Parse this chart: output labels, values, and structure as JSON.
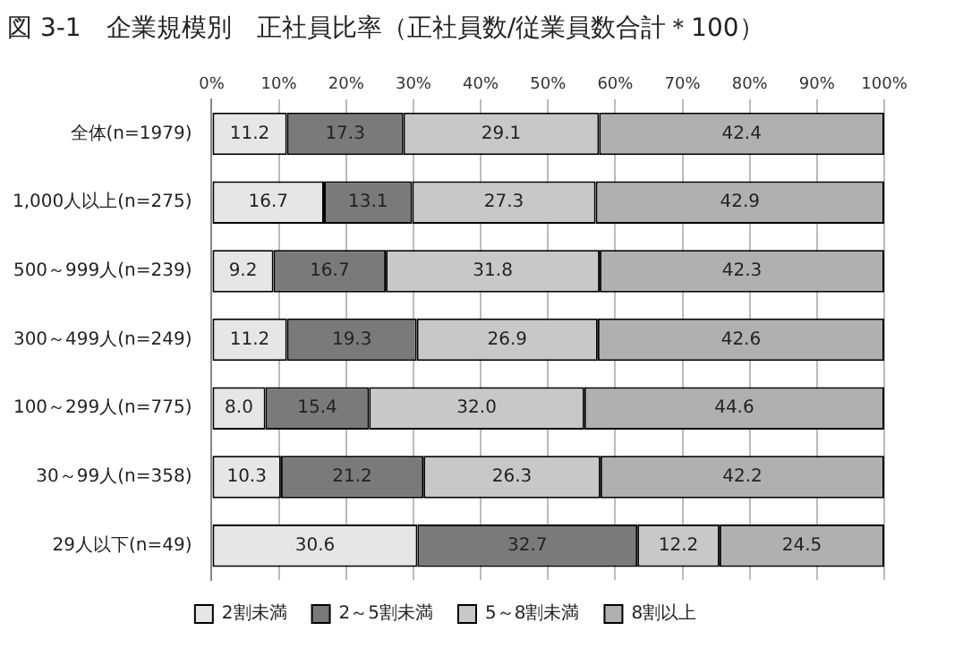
{
  "chart_data": {
    "type": "bar",
    "orientation": "horizontal",
    "stacked": true,
    "title": "図 3-1　企業規模別　正社員比率（正社員数/従業員数合計＊100）",
    "categories": [
      "全体(n=1979)",
      "1,000人以上(n=275)",
      "500～999人(n=239)",
      "300～499人(n=249)",
      "100～299人(n=775)",
      "30～99人(n=358)",
      "29人以下(n=49)"
    ],
    "series": [
      {
        "name": "2割未満",
        "color": "#e6e6e6",
        "values": [
          11.2,
          16.7,
          9.2,
          11.2,
          8.0,
          10.3,
          30.6
        ],
        "value_labels": [
          "11.2",
          "16.7",
          "9.2",
          "11.2",
          "8.0",
          "10.3",
          "30.6"
        ]
      },
      {
        "name": "2～5割未満",
        "color": "#7a7a7a",
        "values": [
          17.3,
          13.1,
          16.7,
          19.3,
          15.4,
          21.2,
          32.7
        ],
        "value_labels": [
          "17.3",
          "13.1",
          "16.7",
          "19.3",
          "15.4",
          "21.2",
          "32.7"
        ]
      },
      {
        "name": "5～8割未満",
        "color": "#c8c8c8",
        "values": [
          29.1,
          27.3,
          31.8,
          26.9,
          32.0,
          26.3,
          12.2
        ],
        "value_labels": [
          "29.1",
          "27.3",
          "31.8",
          "26.9",
          "32.0",
          "26.3",
          "12.2"
        ]
      },
      {
        "name": "8割以上",
        "color": "#b0b0b0",
        "values": [
          42.4,
          42.9,
          42.3,
          42.6,
          44.6,
          42.2,
          24.5
        ],
        "value_labels": [
          "42.4",
          "42.9",
          "42.3",
          "42.6",
          "44.6",
          "42.2",
          "24.5"
        ]
      }
    ],
    "xlim": [
      0,
      100
    ],
    "xticks": [
      {
        "value": 0,
        "label": "0%"
      },
      {
        "value": 10,
        "label": "10%"
      },
      {
        "value": 20,
        "label": "20%"
      },
      {
        "value": 30,
        "label": "30%"
      },
      {
        "value": 40,
        "label": "40%"
      },
      {
        "value": 50,
        "label": "50%"
      },
      {
        "value": 60,
        "label": "60%"
      },
      {
        "value": 70,
        "label": "70%"
      },
      {
        "value": 80,
        "label": "80%"
      },
      {
        "value": 90,
        "label": "90%"
      },
      {
        "value": 100,
        "label": "100%"
      }
    ],
    "grid": "x",
    "legend": "bottom"
  }
}
